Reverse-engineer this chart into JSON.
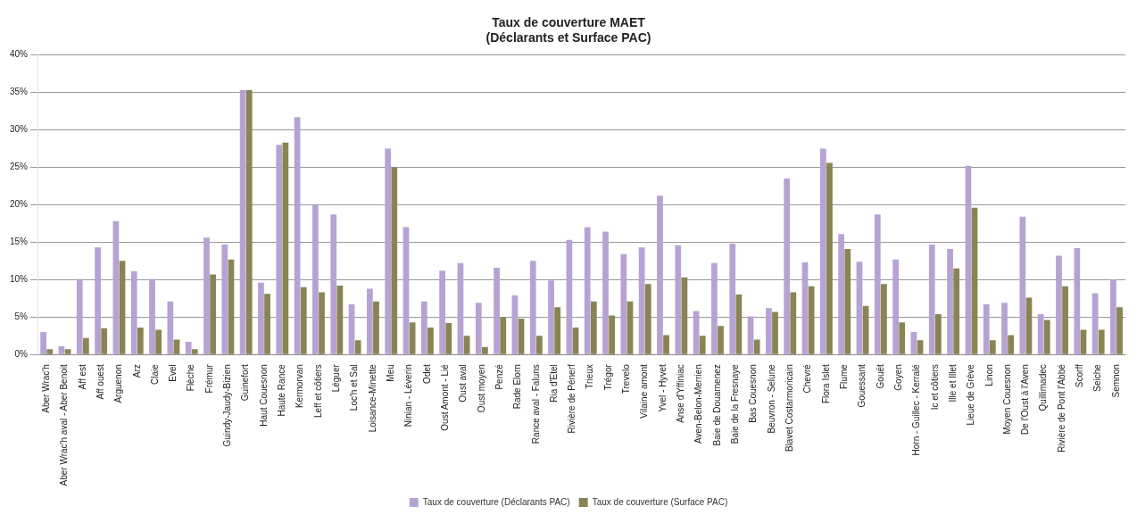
{
  "chart_data": {
    "type": "bar",
    "title": "Taux de couverture MAET\n(Déclarants et Surface PAC)",
    "categories": [
      "Aber Wrac'h",
      "Aber Wrac'h aval - Aber Benoit",
      "Aff est",
      "Aff ouest",
      "Arguenon",
      "Arz",
      "Claie",
      "Evel",
      "Flèche",
      "Frémur",
      "Guindy-Jaudy-Bizien",
      "Guinefort",
      "Haut Couesnon",
      "Haute Rance",
      "Kermorvan",
      "Leff et côtiers",
      "Léguer",
      "Loc'h et Sal",
      "Loisance-Minette",
      "Meu",
      "Ninian - Léverin",
      "Odet",
      "Oust Amont - Lié",
      "Oust aval",
      "Oust moyen",
      "Penzé",
      "Rade Elorn",
      "Rance aval - Faluns",
      "Ria d'Etel",
      "Rivière de Pénerf",
      "Trieux",
      "Trégor",
      "Trevelo",
      "Vilaine amont",
      "Yvel - Hyvet",
      "Anse d'Yffiniac",
      "Aven-Belon-Merrien",
      "Baie de Douarnenez",
      "Baie de la Fresnaye",
      "Bas Couesnon",
      "Beuvron - Selune",
      "Blavet Costarmoricain",
      "Chevré",
      "Flora Islet",
      "Flume",
      "Gouessant",
      "Gouët",
      "Goyen",
      "Horn - Guillec - Kerralé",
      "Ic et côtiers",
      "Ille et Illet",
      "Lieue de Grève",
      "Linon",
      "Moyen Couesnon",
      "De l'Oust à l'Aven",
      "Quillimadec",
      "Rivière de Pont l'Abbé",
      "Scorff",
      "Seiche",
      "Semnon"
    ],
    "series": [
      {
        "name": "Taux de couverture (Déclarants PAC)",
        "color": "#b7a3d3",
        "values": [
          3.0,
          1.1,
          10.1,
          14.3,
          17.8,
          11.1,
          10.1,
          7.1,
          1.7,
          15.6,
          14.7,
          35.3,
          9.6,
          28.0,
          31.7,
          20.0,
          18.7,
          6.7,
          8.8,
          27.5,
          17.0,
          7.1,
          11.2,
          12.2,
          6.9,
          11.6,
          7.9,
          12.5,
          9.9,
          15.3,
          17.0,
          16.4,
          13.4,
          14.3,
          21.2,
          14.6,
          5.8,
          12.2,
          14.8,
          5.1,
          6.2,
          23.5,
          12.3,
          27.5,
          16.1,
          12.4,
          18.7,
          12.7,
          3.0,
          14.7,
          14.1,
          25.2,
          6.7,
          6.9,
          18.4,
          5.4,
          13.2,
          14.2,
          8.2,
          10.0
        ]
      },
      {
        "name": "Taux de couverture (Surface PAC)",
        "color": "#8a8453",
        "values": [
          0.7,
          0.7,
          2.2,
          3.5,
          12.5,
          3.6,
          3.3,
          2.0,
          0.7,
          10.7,
          12.7,
          35.3,
          8.1,
          28.3,
          9.0,
          8.3,
          9.2,
          1.9,
          7.1,
          25.0,
          4.3,
          3.6,
          4.2,
          2.5,
          1.0,
          5.0,
          4.8,
          2.5,
          6.3,
          3.6,
          7.1,
          5.2,
          7.1,
          9.4,
          2.6,
          10.3,
          2.5,
          3.8,
          8.0,
          2.0,
          5.7,
          8.3,
          9.1,
          25.6,
          14.1,
          6.5,
          9.4,
          4.3,
          1.9,
          5.4,
          11.5,
          19.6,
          1.9,
          2.6,
          7.6,
          4.6,
          9.1,
          3.3,
          3.3,
          6.3
        ]
      }
    ],
    "ylim": [
      0,
      40
    ],
    "yticks": [
      {
        "value": 0,
        "label": "0%"
      },
      {
        "value": 5,
        "label": "5%"
      },
      {
        "value": 10,
        "label": "10%"
      },
      {
        "value": 15,
        "label": "15%"
      },
      {
        "value": 20,
        "label": "20%"
      },
      {
        "value": 25,
        "label": "25%"
      },
      {
        "value": 30,
        "label": "30%"
      },
      {
        "value": 35,
        "label": "35%"
      },
      {
        "value": 40,
        "label": "40%"
      }
    ],
    "grid": "y",
    "legend": "bottom"
  }
}
